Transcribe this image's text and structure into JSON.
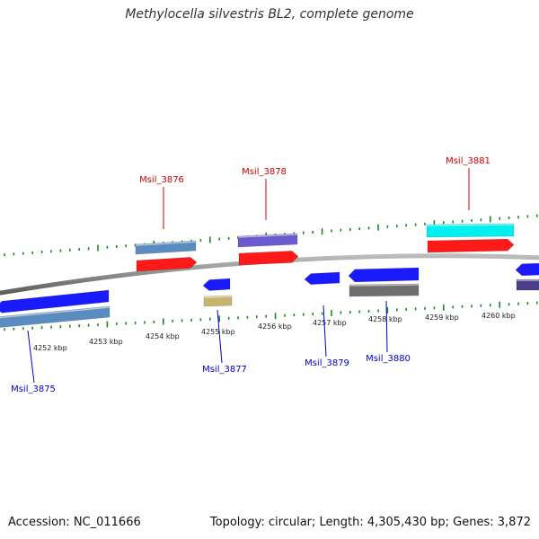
{
  "title": "Methylocella silvestris BL2, complete genome",
  "footer": {
    "accession": "Accession: NC_011666",
    "topology": "Topology: circular; Length: 4,305,430 bp; Genes: 3,872"
  },
  "scale": {
    "labels": [
      "4252 kbp",
      "4253 kbp",
      "4254 kbp",
      "4255 kbp",
      "4256 kbp",
      "4257 kbp",
      "4258 kbp",
      "4259 kbp",
      "4260 kbp"
    ]
  },
  "labels": {
    "forward": [
      "Msil_3876",
      "Msil_3878",
      "Msil_3881"
    ],
    "reverse": [
      "Msil_3875",
      "Msil_3877",
      "Msil_3879",
      "Msil_3880"
    ]
  },
  "colors": {
    "backbone": "#8c8c8c",
    "tick": "#1a8a1a",
    "forward_label": "#cc0000",
    "reverse_label": "#0000cc",
    "cds_forward": "#ff1a1a",
    "cds_reverse": "#1a1aff",
    "steelblue": "#5a8cc0",
    "slateblue": "#6a5acd",
    "cyan": "#00f0f0",
    "khaki": "#c8b46e",
    "gray": "#6e6e6e",
    "darkslate": "#4b3f8c"
  }
}
